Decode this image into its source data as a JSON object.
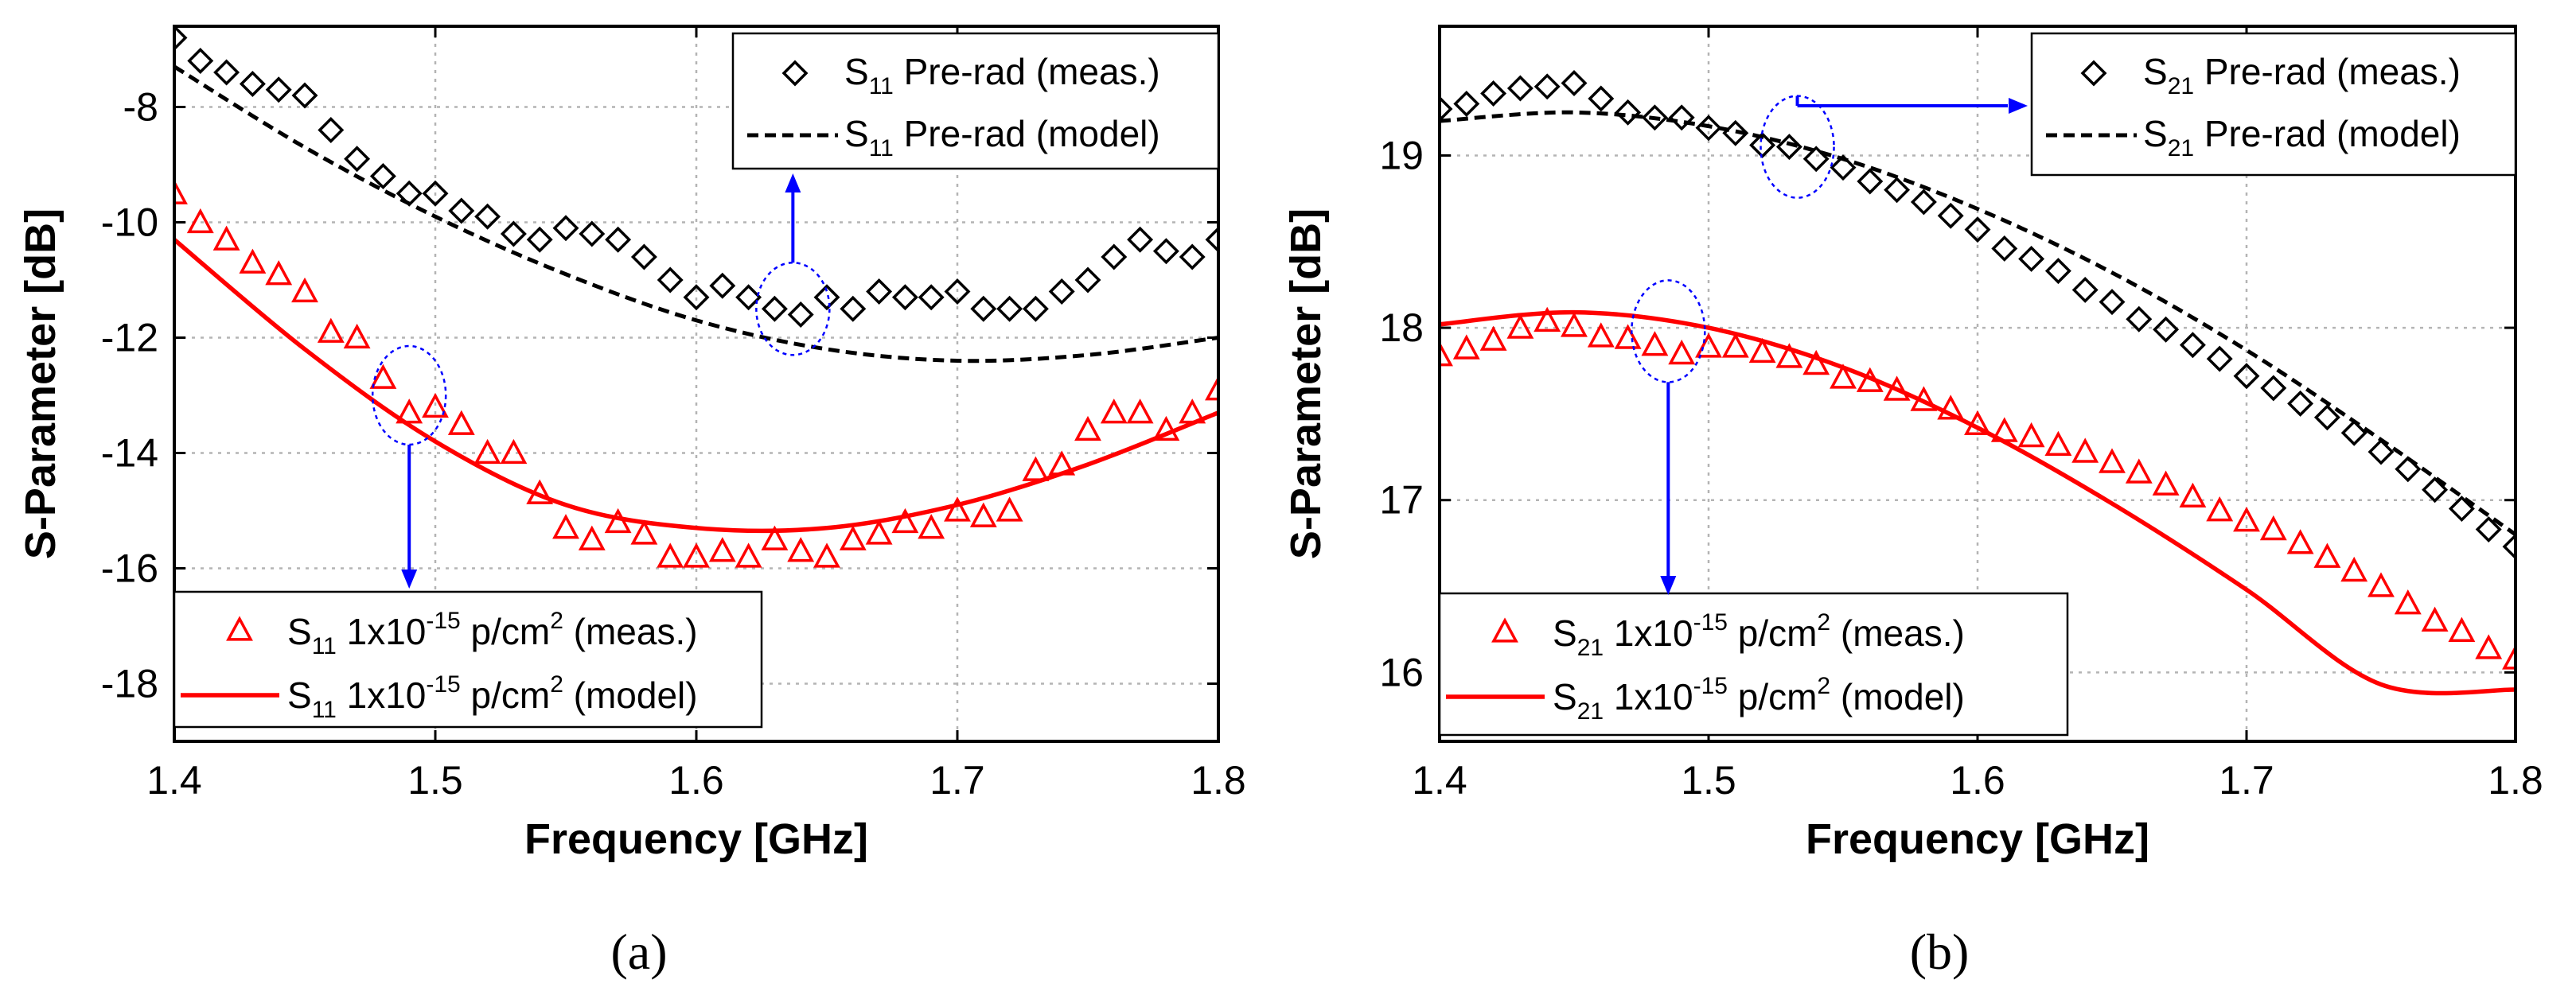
{
  "chart_data": [
    {
      "panel_label": "(a)",
      "type": "scatter",
      "xlabel": "Frequency [GHz]",
      "ylabel": "S-Parameter [dB]",
      "xlim": [
        1.4,
        1.8
      ],
      "ylim": [
        -19,
        -6.6
      ],
      "xticks": [
        1.4,
        1.5,
        1.6,
        1.7,
        1.8
      ],
      "xtick_labels": [
        "1.4",
        "1.5",
        "1.6",
        "1.7",
        "1.8"
      ],
      "yticks": [
        -18,
        -16,
        -14,
        -12,
        -10,
        -8
      ],
      "ytick_labels": [
        "-18",
        "-16",
        "-14",
        "-12",
        "-10",
        "-8"
      ],
      "grid": true,
      "colors": {
        "pre": "#000000",
        "post": "#ff0000",
        "annotation": "#0000ff"
      },
      "series": [
        {
          "name_parts": [
            "S",
            "11",
            " Pre-rad (meas.)"
          ],
          "marker": "diamond",
          "x": [
            1.4,
            1.41,
            1.42,
            1.43,
            1.44,
            1.45,
            1.46,
            1.47,
            1.48,
            1.49,
            1.5,
            1.51,
            1.52,
            1.53,
            1.54,
            1.55,
            1.56,
            1.57,
            1.58,
            1.59,
            1.6,
            1.61,
            1.62,
            1.63,
            1.64,
            1.65,
            1.66,
            1.67,
            1.68,
            1.69,
            1.7,
            1.71,
            1.72,
            1.73,
            1.74,
            1.75,
            1.76,
            1.77,
            1.78,
            1.79,
            1.8
          ],
          "y": [
            -6.8,
            -7.2,
            -7.4,
            -7.6,
            -7.7,
            -7.8,
            -8.4,
            -8.9,
            -9.2,
            -9.5,
            -9.5,
            -9.8,
            -9.9,
            -10.2,
            -10.3,
            -10.1,
            -10.2,
            -10.3,
            -10.6,
            -11.0,
            -11.3,
            -11.1,
            -11.3,
            -11.5,
            -11.6,
            -11.3,
            -11.5,
            -11.2,
            -11.3,
            -11.3,
            -11.2,
            -11.5,
            -11.5,
            -11.5,
            -11.2,
            -11.0,
            -10.6,
            -10.3,
            -10.5,
            -10.6,
            -10.3
          ]
        },
        {
          "name_parts": [
            "S",
            "11",
            " Pre-rad (model)"
          ],
          "line": "dashed",
          "x": [
            1.4,
            1.45,
            1.5,
            1.55,
            1.6,
            1.65,
            1.7,
            1.75,
            1.8
          ],
          "y": [
            -7.3,
            -8.7,
            -9.9,
            -10.9,
            -11.7,
            -12.2,
            -12.4,
            -12.3,
            -12.0
          ]
        },
        {
          "name_parts": [
            "S",
            "11",
            " 1x10",
            "-15",
            " p/cm",
            "2",
            " (meas.)"
          ],
          "marker": "triangle",
          "x": [
            1.4,
            1.41,
            1.42,
            1.43,
            1.44,
            1.45,
            1.46,
            1.47,
            1.48,
            1.49,
            1.5,
            1.51,
            1.52,
            1.53,
            1.54,
            1.55,
            1.56,
            1.57,
            1.58,
            1.59,
            1.6,
            1.61,
            1.62,
            1.63,
            1.64,
            1.65,
            1.66,
            1.67,
            1.68,
            1.69,
            1.7,
            1.71,
            1.72,
            1.73,
            1.74,
            1.75,
            1.76,
            1.77,
            1.78,
            1.79,
            1.8
          ],
          "y": [
            -9.5,
            -10.0,
            -10.3,
            -10.7,
            -10.9,
            -11.2,
            -11.9,
            -12.0,
            -12.7,
            -13.3,
            -13.2,
            -13.5,
            -14.0,
            -14.0,
            -14.7,
            -15.3,
            -15.5,
            -15.2,
            -15.4,
            -15.8,
            -15.8,
            -15.7,
            -15.8,
            -15.5,
            -15.7,
            -15.8,
            -15.5,
            -15.4,
            -15.2,
            -15.3,
            -15.0,
            -15.1,
            -15.0,
            -14.3,
            -14.2,
            -13.6,
            -13.3,
            -13.3,
            -13.6,
            -13.3,
            -12.9
          ]
        },
        {
          "name_parts": [
            "S",
            "11",
            " 1x10",
            "-15",
            " p/cm",
            "2",
            " (model)"
          ],
          "line": "solid",
          "x": [
            1.4,
            1.45,
            1.5,
            1.55,
            1.6,
            1.65,
            1.7,
            1.75,
            1.8
          ],
          "y": [
            -10.3,
            -12.2,
            -13.8,
            -14.9,
            -15.3,
            -15.3,
            -14.9,
            -14.2,
            -13.3
          ]
        }
      ]
    },
    {
      "panel_label": "(b)",
      "type": "scatter",
      "xlabel": "Frequency [GHz]",
      "ylabel": "S-Parameter [dB]",
      "xlim": [
        1.4,
        1.8
      ],
      "ylim": [
        15.6,
        19.75
      ],
      "xticks": [
        1.4,
        1.5,
        1.6,
        1.7,
        1.8
      ],
      "xtick_labels": [
        "1.4",
        "1.5",
        "1.6",
        "1.7",
        "1.8"
      ],
      "yticks": [
        16,
        17,
        18,
        19
      ],
      "ytick_labels": [
        "16",
        "17",
        "18",
        "19"
      ],
      "grid": true,
      "colors": {
        "pre": "#000000",
        "post": "#ff0000",
        "annotation": "#0000ff"
      },
      "series": [
        {
          "name_parts": [
            "S",
            "21",
            " Pre-rad (meas.)"
          ],
          "marker": "diamond",
          "x": [
            1.4,
            1.41,
            1.42,
            1.43,
            1.44,
            1.45,
            1.46,
            1.47,
            1.48,
            1.49,
            1.5,
            1.51,
            1.52,
            1.53,
            1.54,
            1.55,
            1.56,
            1.57,
            1.58,
            1.59,
            1.6,
            1.61,
            1.62,
            1.63,
            1.64,
            1.65,
            1.66,
            1.67,
            1.68,
            1.69,
            1.7,
            1.71,
            1.72,
            1.73,
            1.74,
            1.75,
            1.76,
            1.77,
            1.78,
            1.79,
            1.8
          ],
          "y": [
            19.27,
            19.3,
            19.36,
            19.39,
            19.4,
            19.42,
            19.33,
            19.25,
            19.22,
            19.22,
            19.16,
            19.13,
            19.06,
            19.05,
            18.98,
            18.93,
            18.85,
            18.8,
            18.73,
            18.65,
            18.57,
            18.46,
            18.4,
            18.33,
            18.22,
            18.15,
            18.05,
            17.99,
            17.9,
            17.82,
            17.72,
            17.65,
            17.56,
            17.48,
            17.39,
            17.28,
            17.18,
            17.06,
            16.95,
            16.83,
            16.73
          ]
        },
        {
          "name_parts": [
            "S",
            "21",
            " Pre-rad (model)"
          ],
          "line": "dashed",
          "x": [
            1.4,
            1.45,
            1.5,
            1.55,
            1.6,
            1.65,
            1.7,
            1.75,
            1.8
          ],
          "y": [
            19.2,
            19.25,
            19.17,
            18.98,
            18.69,
            18.32,
            17.87,
            17.35,
            16.8
          ]
        },
        {
          "name_parts": [
            "S",
            "21",
            " 1x10",
            "-15",
            " p/cm",
            "2",
            " (meas.)"
          ],
          "marker": "triangle",
          "x": [
            1.4,
            1.41,
            1.42,
            1.43,
            1.44,
            1.45,
            1.46,
            1.47,
            1.48,
            1.49,
            1.5,
            1.51,
            1.52,
            1.53,
            1.54,
            1.55,
            1.56,
            1.57,
            1.58,
            1.59,
            1.6,
            1.61,
            1.62,
            1.63,
            1.64,
            1.65,
            1.66,
            1.67,
            1.68,
            1.69,
            1.7,
            1.71,
            1.72,
            1.73,
            1.74,
            1.75,
            1.76,
            1.77,
            1.78,
            1.79,
            1.8
          ],
          "y": [
            17.84,
            17.88,
            17.93,
            18.0,
            18.04,
            18.01,
            17.95,
            17.94,
            17.9,
            17.85,
            17.89,
            17.89,
            17.86,
            17.83,
            17.79,
            17.71,
            17.69,
            17.64,
            17.58,
            17.53,
            17.44,
            17.4,
            17.37,
            17.32,
            17.28,
            17.22,
            17.16,
            17.09,
            17.02,
            16.94,
            16.88,
            16.83,
            16.75,
            16.67,
            16.59,
            16.5,
            16.4,
            16.3,
            16.24,
            16.14,
            16.08
          ]
        },
        {
          "name_parts": [
            "S",
            "21",
            " 1x10",
            "-15",
            " p/cm",
            "2",
            " (model)"
          ],
          "line": "solid",
          "x": [
            1.4,
            1.45,
            1.5,
            1.55,
            1.6,
            1.65,
            1.7,
            1.75,
            1.8
          ],
          "y": [
            18.02,
            18.09,
            18.0,
            17.77,
            17.42,
            16.98,
            16.48,
            15.93,
            15.9
          ]
        }
      ]
    }
  ]
}
